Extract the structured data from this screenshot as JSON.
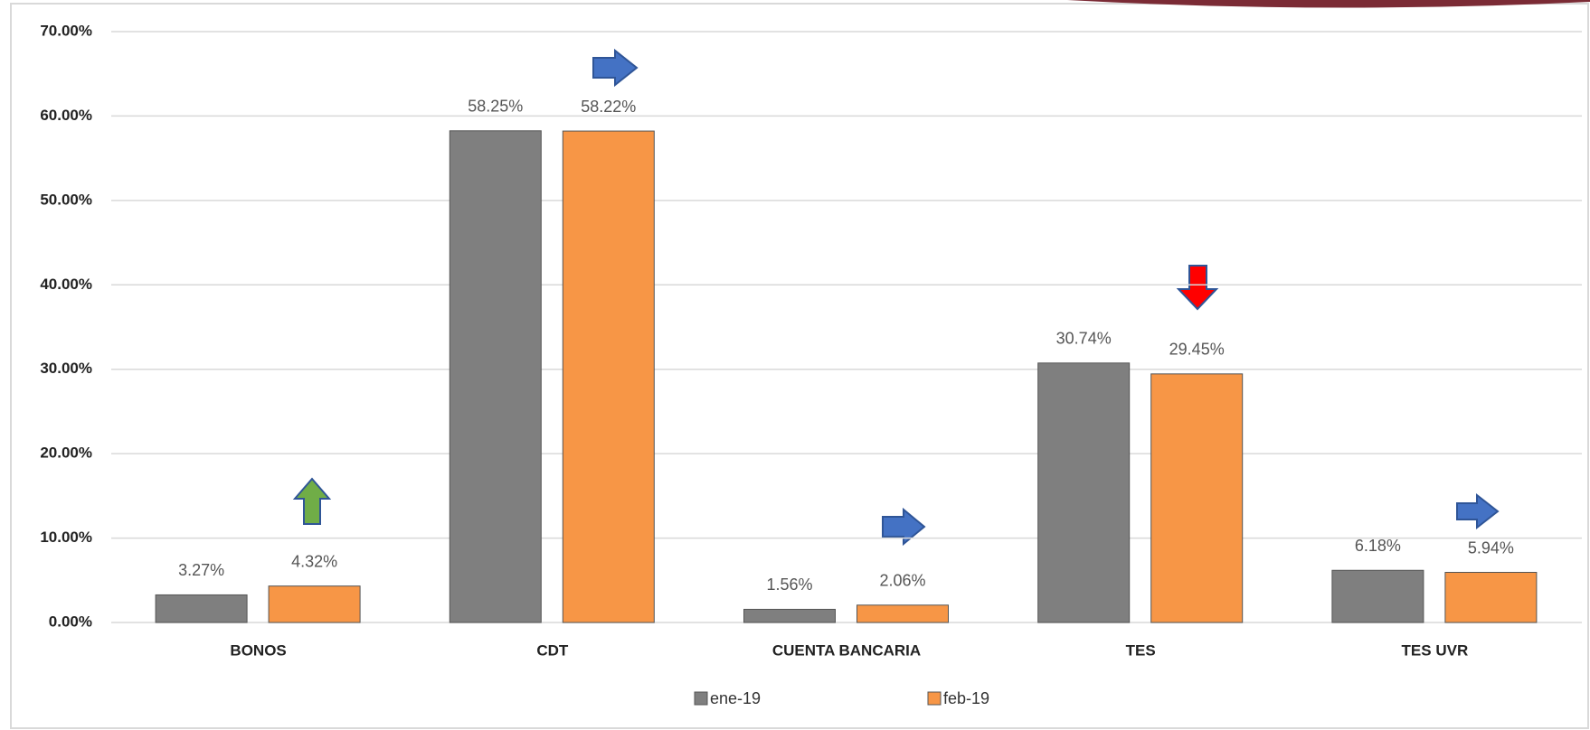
{
  "chart_data": {
    "type": "bar",
    "categories": [
      "BONOS",
      "CDT",
      "CUENTA BANCARIA",
      "TES",
      "TES UVR"
    ],
    "series": [
      {
        "name": "ene-19",
        "color": "#7f7f7f",
        "values": [
          3.27,
          58.25,
          1.56,
          30.74,
          6.18
        ],
        "value_labels": [
          "3.27%",
          "58.25%",
          "1.56%",
          "30.74%",
          "6.18%"
        ]
      },
      {
        "name": "feb-19",
        "color": "#f79646",
        "values": [
          4.32,
          58.22,
          2.06,
          29.45,
          5.94
        ],
        "value_labels": [
          "4.32%",
          "58.22%",
          "2.06%",
          "29.45%",
          "5.94%"
        ]
      }
    ],
    "ylim": [
      0,
      70
    ],
    "yticks": [
      {
        "value": 0,
        "label": "0.00%"
      },
      {
        "value": 10,
        "label": "10.00%"
      },
      {
        "value": 20,
        "label": "20.00%"
      },
      {
        "value": 30,
        "label": "30.00%"
      },
      {
        "value": 40,
        "label": "40.00%"
      },
      {
        "value": 50,
        "label": "50.00%"
      },
      {
        "value": 60,
        "label": "60.00%"
      },
      {
        "value": 70,
        "label": "70.00%"
      }
    ],
    "grid": true,
    "legend": "bottom"
  }
}
